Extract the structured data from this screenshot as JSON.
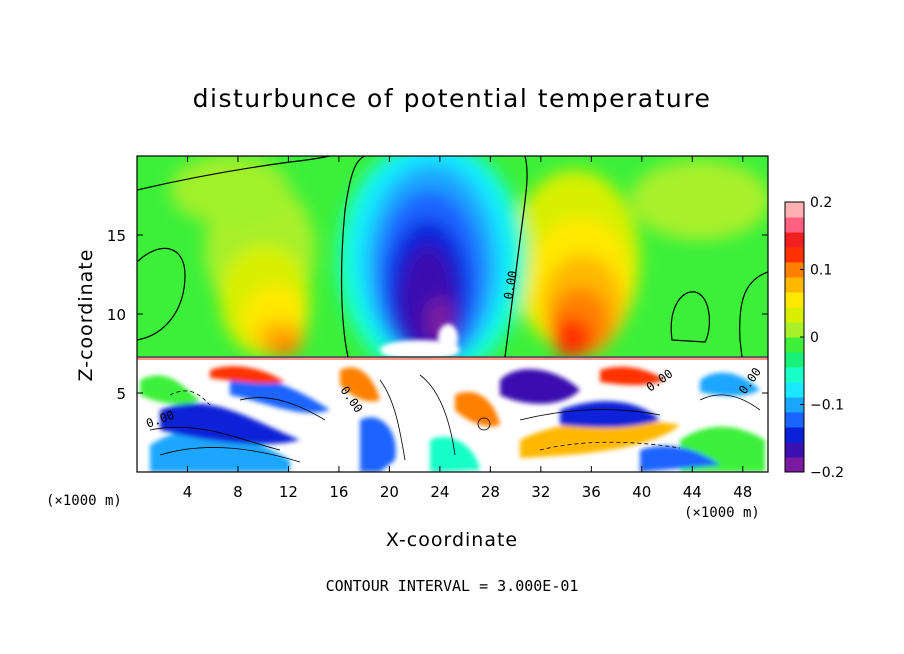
{
  "chart_data": {
    "type": "heatmap",
    "title": "disturbunce of potential temperature",
    "xlabel": "X-coordinate",
    "ylabel": "Z-coordinate",
    "x_unit_left": "(×1000 m)",
    "x_unit_right": "(×1000 m)",
    "xlim": [
      0,
      50
    ],
    "ylim": [
      0,
      20
    ],
    "x_ticks": [
      "4",
      "8",
      "12",
      "16",
      "20",
      "24",
      "28",
      "32",
      "36",
      "40",
      "44",
      "48"
    ],
    "y_ticks": [
      "5",
      "10",
      "15"
    ],
    "colorbar": {
      "min": -0.2,
      "max": 0.2,
      "tick_labels": [
        "0.2",
        "0.1",
        "0",
        "−0.1",
        "−0.2"
      ],
      "colors": [
        "#7a1aa0",
        "#3b10b0",
        "#0a20d8",
        "#1a64ff",
        "#1aa6ff",
        "#19e8ff",
        "#18ffc8",
        "#18f07a",
        "#3ef03a",
        "#a8f02a",
        "#d8f000",
        "#ffe800",
        "#ffb800",
        "#ff8000",
        "#ff3000",
        "#f02020",
        "#ff6080",
        "#ffb0b0"
      ]
    },
    "contour_labels": [
      "0.00",
      "0.00",
      "0.00",
      "0.00",
      "0.00"
    ],
    "footer": "CONTOUR INTERVAL = 3.000E-01"
  }
}
